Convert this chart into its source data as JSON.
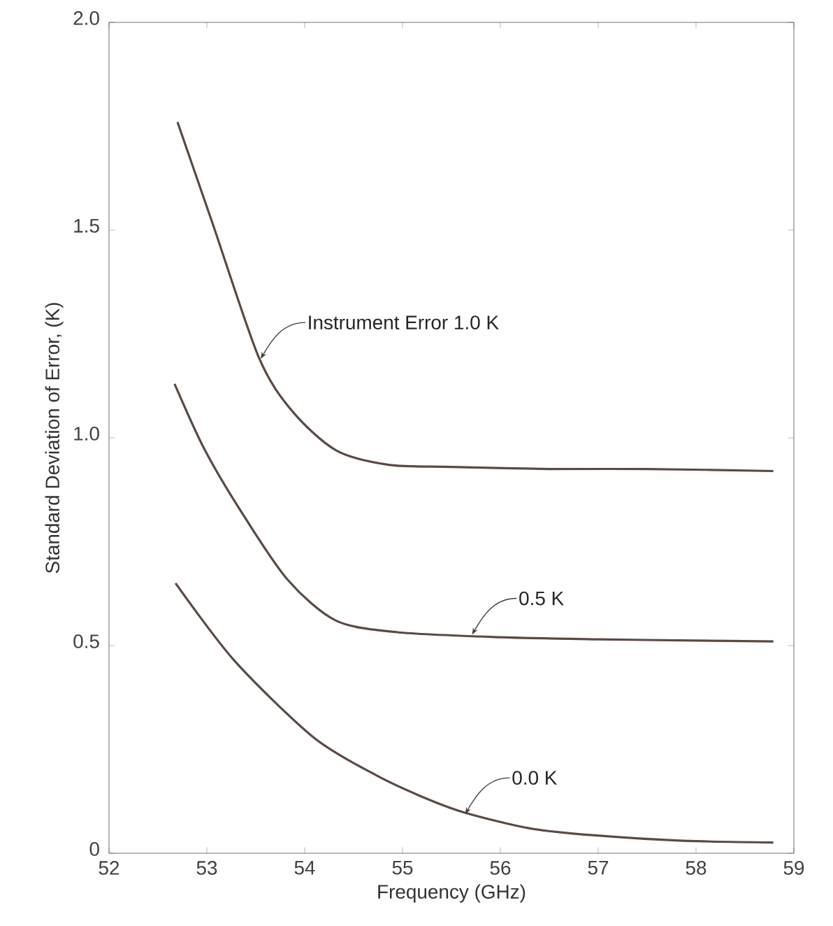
{
  "chart_data": {
    "type": "line",
    "xlabel": "Frequency (GHz)",
    "ylabel": "Standard Deviation of Error, (K)",
    "xlim": [
      52,
      59
    ],
    "xticks": [
      52,
      53,
      54,
      55,
      56,
      57,
      58,
      59
    ],
    "ylim": [
      0,
      2.0
    ],
    "yticks": [
      0,
      {
        "value": 0.5,
        "label": "0.5"
      },
      {
        "value": 1.0,
        "label": "1.0"
      },
      {
        "value": 1.5,
        "label": "1.5"
      },
      {
        "value": 2.0,
        "label": "2.0"
      }
    ],
    "series": [
      {
        "color": "#5a4a44",
        "x": [
          52.7,
          53.06,
          53.53,
          53.87,
          54.32,
          54.86,
          55.5,
          56.5,
          57.5,
          58.79
        ],
        "values": [
          1.76,
          1.515,
          1.194,
          1.065,
          0.97,
          0.935,
          0.93,
          0.925,
          0.925,
          0.92
        ]
      },
      {
        "color": "#5a4a44",
        "x": [
          52.67,
          52.97,
          53.33,
          53.82,
          54.32,
          54.95,
          56.0,
          57.0,
          58.0,
          58.79
        ],
        "values": [
          1.13,
          0.975,
          0.83,
          0.66,
          0.56,
          0.532,
          0.52,
          0.515,
          0.512,
          0.51
        ]
      },
      {
        "color": "#5a4a44",
        "x": [
          52.68,
          53.28,
          54.09,
          54.72,
          55.17,
          55.62,
          56.3,
          56.97,
          57.87,
          58.79
        ],
        "values": [
          0.65,
          0.464,
          0.279,
          0.189,
          0.139,
          0.099,
          0.06,
          0.043,
          0.03,
          0.026
        ]
      }
    ],
    "annotations": [
      {
        "text": "Instrument Error  1.0 K",
        "x": 53.55,
        "y": 1.19
      },
      {
        "text": "0.5 K",
        "x": 55.71,
        "y": 0.526
      },
      {
        "text": "0.0 K",
        "x": 55.64,
        "y": 0.094
      }
    ],
    "marker": "none",
    "line_style": "solid",
    "grid": false
  }
}
